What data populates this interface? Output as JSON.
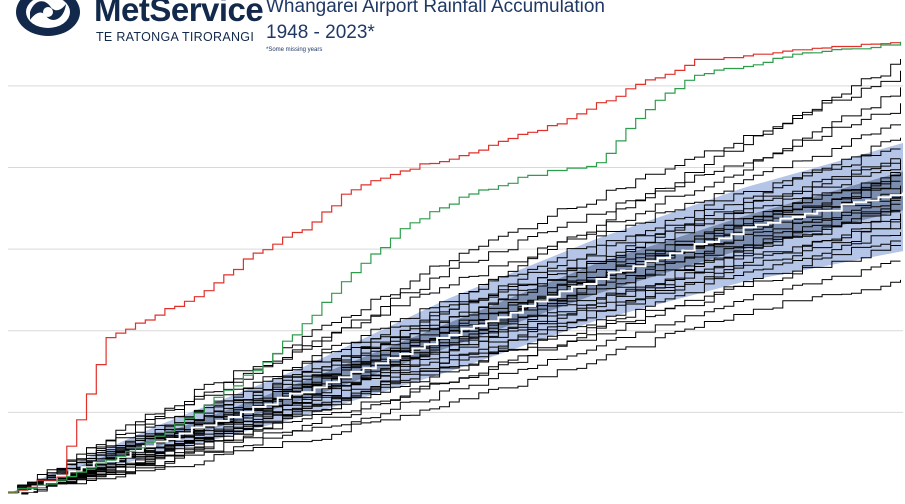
{
  "brand": {
    "name": "MetService",
    "subtitle": "TE RATONGA TIRORANGI",
    "logo_icon": "metservice-swirl-logo-icon",
    "color": "#13294b"
  },
  "chart_data": {
    "type": "line",
    "title": "Whangarei Airport Rainfall Accumulation",
    "subtitle": "1948 - 2023*",
    "footnote": "*Some missing years",
    "xlabel": "",
    "ylabel": "",
    "xlim": [
      0,
      365
    ],
    "ylim": [
      0,
      2200
    ],
    "grid": true,
    "colors": {
      "years": "#000000",
      "record_high_year": "#e0312b",
      "current_year": "#2e9e4d",
      "outer_band": "#a8bbe3",
      "inner_band": "#6e7fa2",
      "median": "#ffffff"
    },
    "bands": [
      {
        "name": "",
        "lower": [
          [
            0,
            0
          ],
          [
            60,
            190
          ],
          [
            120,
            380
          ],
          [
            180,
            600
          ],
          [
            240,
            850
          ],
          [
            300,
            1040
          ],
          [
            365,
            1190
          ]
        ],
        "upper": [
          [
            0,
            0
          ],
          [
            60,
            330
          ],
          [
            120,
            620
          ],
          [
            180,
            960
          ],
          [
            240,
            1250
          ],
          [
            300,
            1500
          ],
          [
            365,
            1720
          ]
        ]
      },
      {
        "name": "",
        "lower": [
          [
            0,
            0
          ],
          [
            60,
            230
          ],
          [
            120,
            460
          ],
          [
            180,
            720
          ],
          [
            240,
            980
          ],
          [
            300,
            1200
          ],
          [
            365,
            1390
          ]
        ],
        "upper": [
          [
            0,
            0
          ],
          [
            60,
            280
          ],
          [
            120,
            550
          ],
          [
            180,
            840
          ],
          [
            240,
            1130
          ],
          [
            300,
            1360
          ],
          [
            365,
            1580
          ]
        ]
      }
    ],
    "median": [
      [
        0,
        0
      ],
      [
        60,
        255
      ],
      [
        120,
        505
      ],
      [
        180,
        780
      ],
      [
        240,
        1060
      ],
      [
        300,
        1300
      ],
      [
        365,
        1480
      ]
    ],
    "highlight_series": [
      {
        "name": "",
        "kind": "record_high_year",
        "values": [
          [
            0,
            10
          ],
          [
            20,
            90
          ],
          [
            40,
            770
          ],
          [
            60,
            880
          ],
          [
            80,
            990
          ],
          [
            100,
            1180
          ],
          [
            120,
            1300
          ],
          [
            140,
            1500
          ],
          [
            160,
            1580
          ],
          [
            180,
            1650
          ],
          [
            200,
            1720
          ],
          [
            220,
            1800
          ],
          [
            240,
            1910
          ],
          [
            260,
            2030
          ],
          [
            280,
            2120
          ],
          [
            300,
            2140
          ],
          [
            320,
            2170
          ],
          [
            340,
            2190
          ],
          [
            365,
            2205
          ]
        ]
      },
      {
        "name": "",
        "kind": "current_year",
        "values": [
          [
            0,
            5
          ],
          [
            20,
            70
          ],
          [
            40,
            160
          ],
          [
            60,
            280
          ],
          [
            80,
            430
          ],
          [
            100,
            610
          ],
          [
            120,
            830
          ],
          [
            140,
            1090
          ],
          [
            160,
            1300
          ],
          [
            180,
            1430
          ],
          [
            200,
            1520
          ],
          [
            220,
            1580
          ],
          [
            240,
            1620
          ],
          [
            260,
            1890
          ],
          [
            280,
            2060
          ],
          [
            300,
            2090
          ],
          [
            320,
            2150
          ],
          [
            340,
            2180
          ],
          [
            365,
            2210
          ]
        ]
      }
    ],
    "year_series": [
      [
        [
          0,
          0
        ],
        [
          60,
          230
        ],
        [
          120,
          560
        ],
        [
          180,
          760
        ],
        [
          240,
          1050
        ],
        [
          300,
          1310
        ],
        [
          365,
          1560
        ]
      ],
      [
        [
          0,
          0
        ],
        [
          60,
          200
        ],
        [
          120,
          430
        ],
        [
          180,
          640
        ],
        [
          240,
          900
        ],
        [
          300,
          1180
        ],
        [
          365,
          1400
        ]
      ],
      [
        [
          0,
          0
        ],
        [
          60,
          330
        ],
        [
          120,
          640
        ],
        [
          180,
          910
        ],
        [
          240,
          1210
        ],
        [
          300,
          1470
        ],
        [
          365,
          1700
        ]
      ],
      [
        [
          0,
          0
        ],
        [
          60,
          120
        ],
        [
          120,
          260
        ],
        [
          180,
          450
        ],
        [
          240,
          660
        ],
        [
          300,
          890
        ],
        [
          365,
          1050
        ]
      ],
      [
        [
          0,
          0
        ],
        [
          60,
          280
        ],
        [
          120,
          600
        ],
        [
          180,
          860
        ],
        [
          240,
          1130
        ],
        [
          300,
          1390
        ],
        [
          365,
          1610
        ]
      ],
      [
        [
          0,
          0
        ],
        [
          60,
          170
        ],
        [
          120,
          400
        ],
        [
          180,
          620
        ],
        [
          240,
          820
        ],
        [
          300,
          1090
        ],
        [
          365,
          1300
        ]
      ],
      [
        [
          0,
          0
        ],
        [
          60,
          390
        ],
        [
          120,
          700
        ],
        [
          180,
          1100
        ],
        [
          240,
          1380
        ],
        [
          300,
          1630
        ],
        [
          365,
          1900
        ]
      ],
      [
        [
          0,
          0
        ],
        [
          60,
          240
        ],
        [
          120,
          470
        ],
        [
          180,
          730
        ],
        [
          240,
          1000
        ],
        [
          300,
          1240
        ],
        [
          365,
          1460
        ]
      ],
      [
        [
          0,
          0
        ],
        [
          60,
          180
        ],
        [
          120,
          360
        ],
        [
          180,
          550
        ],
        [
          240,
          780
        ],
        [
          300,
          1020
        ],
        [
          365,
          1220
        ]
      ],
      [
        [
          0,
          0
        ],
        [
          60,
          260
        ],
        [
          120,
          520
        ],
        [
          180,
          820
        ],
        [
          240,
          1090
        ],
        [
          300,
          1350
        ],
        [
          365,
          1580
        ]
      ],
      [
        [
          0,
          0
        ],
        [
          60,
          350
        ],
        [
          120,
          720
        ],
        [
          180,
          1030
        ],
        [
          240,
          1300
        ],
        [
          300,
          1600
        ],
        [
          365,
          1980
        ]
      ],
      [
        [
          0,
          0
        ],
        [
          60,
          210
        ],
        [
          120,
          440
        ],
        [
          180,
          700
        ],
        [
          240,
          950
        ],
        [
          300,
          1190
        ],
        [
          365,
          1390
        ]
      ],
      [
        [
          0,
          0
        ],
        [
          60,
          300
        ],
        [
          120,
          590
        ],
        [
          180,
          880
        ],
        [
          240,
          1180
        ],
        [
          300,
          1450
        ],
        [
          365,
          1760
        ]
      ],
      [
        [
          0,
          0
        ],
        [
          60,
          150
        ],
        [
          120,
          330
        ],
        [
          180,
          560
        ],
        [
          240,
          800
        ],
        [
          300,
          1040
        ],
        [
          365,
          1260
        ]
      ],
      [
        [
          0,
          0
        ],
        [
          60,
          250
        ],
        [
          120,
          490
        ],
        [
          180,
          760
        ],
        [
          240,
          1040
        ],
        [
          300,
          1280
        ],
        [
          365,
          1500
        ]
      ],
      [
        [
          0,
          0
        ],
        [
          60,
          220
        ],
        [
          120,
          520
        ],
        [
          180,
          930
        ],
        [
          240,
          1330
        ],
        [
          300,
          1720
        ],
        [
          365,
          2120
        ]
      ],
      [
        [
          0,
          0
        ],
        [
          60,
          190
        ],
        [
          120,
          420
        ],
        [
          180,
          660
        ],
        [
          240,
          920
        ],
        [
          300,
          1150
        ],
        [
          365,
          1360
        ]
      ],
      [
        [
          0,
          0
        ],
        [
          60,
          310
        ],
        [
          120,
          610
        ],
        [
          180,
          900
        ],
        [
          240,
          1150
        ],
        [
          300,
          1410
        ],
        [
          365,
          1660
        ]
      ],
      [
        [
          0,
          0
        ],
        [
          60,
          230
        ],
        [
          120,
          480
        ],
        [
          180,
          740
        ],
        [
          240,
          1010
        ],
        [
          300,
          1260
        ],
        [
          365,
          1480
        ]
      ],
      [
        [
          0,
          0
        ],
        [
          60,
          270
        ],
        [
          120,
          540
        ],
        [
          180,
          810
        ],
        [
          240,
          1080
        ],
        [
          300,
          1320
        ],
        [
          365,
          1540
        ]
      ],
      [
        [
          0,
          0
        ],
        [
          60,
          160
        ],
        [
          120,
          380
        ],
        [
          180,
          600
        ],
        [
          240,
          860
        ],
        [
          300,
          1120
        ],
        [
          365,
          1320
        ]
      ],
      [
        [
          0,
          0
        ],
        [
          60,
          400
        ],
        [
          120,
          760
        ],
        [
          180,
          1150
        ],
        [
          240,
          1460
        ],
        [
          300,
          1740
        ],
        [
          365,
          2060
        ]
      ],
      [
        [
          0,
          0
        ],
        [
          60,
          210
        ],
        [
          120,
          450
        ],
        [
          180,
          690
        ],
        [
          240,
          940
        ],
        [
          300,
          1200
        ],
        [
          365,
          1420
        ]
      ],
      [
        [
          0,
          0
        ],
        [
          60,
          290
        ],
        [
          120,
          570
        ],
        [
          180,
          850
        ],
        [
          240,
          1140
        ],
        [
          300,
          1420
        ],
        [
          365,
          1640
        ]
      ],
      [
        [
          0,
          0
        ],
        [
          60,
          140
        ],
        [
          120,
          300
        ],
        [
          180,
          500
        ],
        [
          240,
          720
        ],
        [
          300,
          950
        ],
        [
          365,
          1150
        ]
      ],
      [
        [
          0,
          0
        ],
        [
          60,
          260
        ],
        [
          120,
          500
        ],
        [
          180,
          780
        ],
        [
          240,
          1060
        ],
        [
          300,
          1300
        ],
        [
          365,
          1520
        ]
      ],
      [
        [
          0,
          0
        ],
        [
          60,
          320
        ],
        [
          120,
          650
        ],
        [
          180,
          960
        ],
        [
          240,
          1250
        ],
        [
          300,
          1530
        ],
        [
          365,
          1820
        ]
      ],
      [
        [
          0,
          0
        ],
        [
          60,
          200
        ],
        [
          120,
          410
        ],
        [
          180,
          650
        ],
        [
          240,
          890
        ],
        [
          300,
          1130
        ],
        [
          365,
          1340
        ]
      ],
      [
        [
          0,
          0
        ],
        [
          60,
          240
        ],
        [
          120,
          530
        ],
        [
          180,
          800
        ],
        [
          240,
          1070
        ],
        [
          300,
          1340
        ],
        [
          365,
          1560
        ]
      ],
      [
        [
          0,
          0
        ],
        [
          60,
          180
        ],
        [
          120,
          470
        ],
        [
          180,
          720
        ],
        [
          240,
          970
        ],
        [
          300,
          1220
        ],
        [
          365,
          1440
        ]
      ]
    ]
  }
}
